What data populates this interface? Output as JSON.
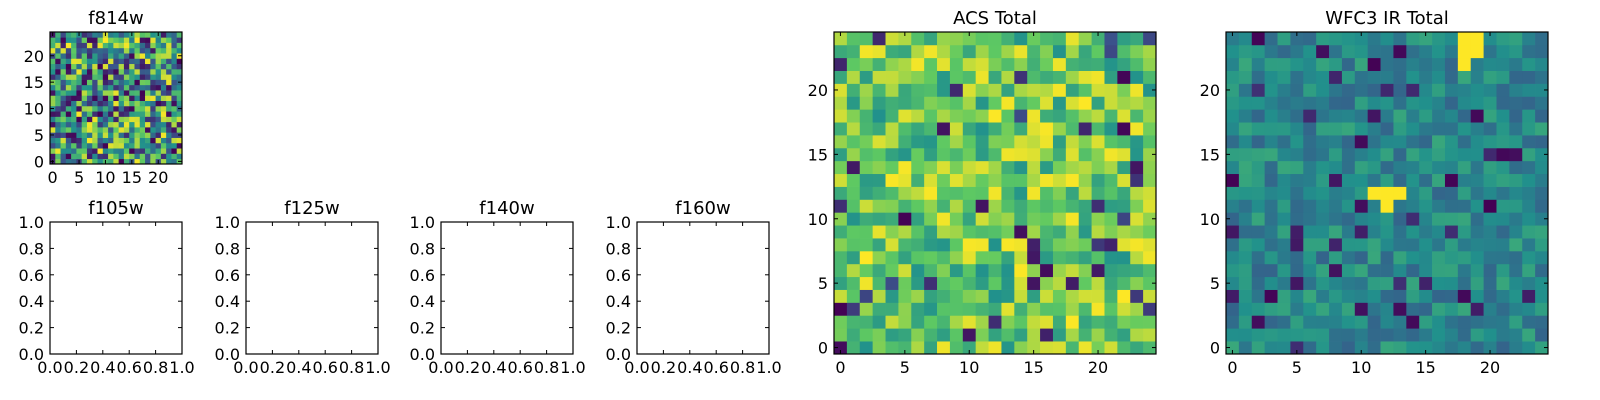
{
  "chart_data": [
    {
      "type": "heatmap",
      "title": "f814w",
      "xlabel": "",
      "ylabel": "",
      "size": 25,
      "seed": 814,
      "mode": "uniform",
      "xticks": [
        0,
        5,
        10,
        15,
        20
      ],
      "yticks": [
        0,
        5,
        10,
        15,
        20
      ],
      "xlim": [
        -0.5,
        24.5
      ],
      "ylim": [
        -0.5,
        24.5
      ],
      "colormap": [
        "#440154",
        "#3b528b",
        "#21918c",
        "#5ec962",
        "#fde725"
      ],
      "grid": false
    },
    {
      "type": "scatter",
      "title": "f105w",
      "xlabel": "",
      "ylabel": "",
      "series": [],
      "xlim": [
        0,
        1
      ],
      "ylim": [
        0,
        1
      ],
      "xticks": [
        "0.0",
        "0.2",
        "0.4",
        "0.6",
        "0.8",
        "1.0"
      ],
      "yticks": [
        "0.0",
        "0.2",
        "0.4",
        "0.6",
        "0.8",
        "1.0"
      ],
      "grid": false
    },
    {
      "type": "scatter",
      "title": "f125w",
      "xlabel": "",
      "ylabel": "",
      "series": [],
      "xlim": [
        0,
        1
      ],
      "ylim": [
        0,
        1
      ],
      "xticks": [
        "0.0",
        "0.2",
        "0.4",
        "0.6",
        "0.8",
        "1.0"
      ],
      "yticks": [
        "0.0",
        "0.2",
        "0.4",
        "0.6",
        "0.8",
        "1.0"
      ],
      "grid": false
    },
    {
      "type": "scatter",
      "title": "f140w",
      "xlabel": "",
      "ylabel": "",
      "series": [],
      "xlim": [
        0,
        1
      ],
      "ylim": [
        0,
        1
      ],
      "xticks": [
        "0.0",
        "0.2",
        "0.4",
        "0.6",
        "0.8",
        "1.0"
      ],
      "yticks": [
        "0.0",
        "0.2",
        "0.4",
        "0.6",
        "0.8",
        "1.0"
      ],
      "grid": false
    },
    {
      "type": "scatter",
      "title": "f160w",
      "xlabel": "",
      "ylabel": "",
      "series": [],
      "xlim": [
        0,
        1
      ],
      "ylim": [
        0,
        1
      ],
      "xticks": [
        "0.0",
        "0.2",
        "0.4",
        "0.6",
        "0.8",
        "1.0"
      ],
      "yticks": [
        "0.0",
        "0.2",
        "0.4",
        "0.6",
        "0.8",
        "1.0"
      ],
      "grid": false
    },
    {
      "type": "heatmap",
      "title": "ACS Total",
      "xlabel": "",
      "ylabel": "",
      "size": 25,
      "seed": 2016,
      "mode": "bright",
      "xticks": [
        0,
        5,
        10,
        15,
        20
      ],
      "yticks": [
        0,
        5,
        10,
        15,
        20
      ],
      "xlim": [
        -0.5,
        24.5
      ],
      "ylim": [
        -0.5,
        24.5
      ],
      "colormap": [
        "#440154",
        "#3b528b",
        "#21918c",
        "#5ec962",
        "#fde725"
      ],
      "grid": false
    },
    {
      "type": "heatmap",
      "title": "WFC3 IR Total",
      "xlabel": "",
      "ylabel": "",
      "size": 25,
      "seed": 3150,
      "mode": "dim",
      "xticks": [
        0,
        5,
        10,
        15,
        20
      ],
      "yticks": [
        0,
        5,
        10,
        15,
        20
      ],
      "xlim": [
        -0.5,
        24.5
      ],
      "ylim": [
        -0.5,
        24.5
      ],
      "colormap": [
        "#440154",
        "#3b528b",
        "#21918c",
        "#5ec962",
        "#fde725"
      ],
      "grid": false,
      "hotspots": [
        [
          18,
          23
        ],
        [
          19,
          23
        ],
        [
          18,
          24
        ],
        [
          19,
          24
        ],
        [
          18,
          22
        ],
        [
          11,
          12
        ],
        [
          12,
          12
        ],
        [
          13,
          12
        ],
        [
          12,
          11
        ]
      ]
    }
  ]
}
